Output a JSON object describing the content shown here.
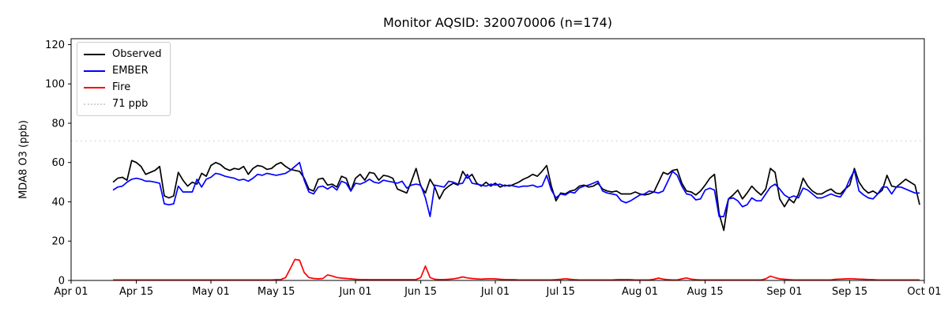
{
  "chart_data": {
    "type": "line",
    "title": "Monitor AQSID: 320070006 (n=174)",
    "xlabel": "",
    "ylabel": "MDA8 O3 (ppb)",
    "n_points": 174,
    "frequency": "daily",
    "start_date": "Apr 10",
    "end_date": "Sep 30",
    "x_axis": {
      "range_labels": [
        "Apr 01",
        "Oct 01"
      ],
      "days_total": 183,
      "data_start_offset_days": 9,
      "ticks": [
        {
          "label": "Apr 01",
          "day": 0
        },
        {
          "label": "Apr 15",
          "day": 14
        },
        {
          "label": "May 01",
          "day": 30
        },
        {
          "label": "May 15",
          "day": 44
        },
        {
          "label": "Jun 01",
          "day": 61
        },
        {
          "label": "Jun 15",
          "day": 75
        },
        {
          "label": "Jul 01",
          "day": 91
        },
        {
          "label": "Jul 15",
          "day": 105
        },
        {
          "label": "Aug 01",
          "day": 122
        },
        {
          "label": "Aug 15",
          "day": 136
        },
        {
          "label": "Sep 01",
          "day": 153
        },
        {
          "label": "Sep 15",
          "day": 167
        },
        {
          "label": "Oct 01",
          "day": 183
        }
      ]
    },
    "y_axis": {
      "ticks": [
        0,
        20,
        40,
        60,
        80,
        100,
        120
      ],
      "range": [
        0,
        123
      ],
      "grid": false
    },
    "threshold": {
      "label": "71 ppb",
      "value": 71,
      "color": "#d3d3d3",
      "style": "dotted"
    },
    "legend": {
      "position": "upper left",
      "entries": [
        {
          "label": "Observed",
          "color": "#000000",
          "style": "solid"
        },
        {
          "label": "EMBER",
          "color": "#0000ff",
          "style": "solid"
        },
        {
          "label": "Fire",
          "color": "#ff0000",
          "style": "solid"
        },
        {
          "label": "71 ppb",
          "color": "#d3d3d3",
          "style": "dotted"
        }
      ]
    },
    "series": [
      {
        "name": "Observed",
        "color": "#000000",
        "values": [
          50,
          52,
          52.5,
          51,
          61,
          60,
          58,
          54,
          55,
          56,
          58,
          43,
          42,
          43,
          55,
          51,
          48,
          50,
          49,
          54.5,
          53,
          58.5,
          60,
          59,
          57,
          56,
          57,
          56.5,
          58,
          54,
          57,
          58.5,
          58,
          56.5,
          57,
          59,
          60,
          58,
          56.5,
          56,
          55.5,
          52,
          46.5,
          45.5,
          51.5,
          52,
          48.5,
          49,
          47.5,
          53,
          52,
          45.5,
          52,
          54,
          51,
          55,
          54.5,
          51,
          53.5,
          53,
          52,
          46.5,
          45.5,
          44.5,
          50.5,
          57,
          48,
          44.5,
          51.5,
          47.5,
          41.5,
          46,
          48,
          49.5,
          48.5,
          55.5,
          52,
          54,
          49.5,
          48,
          50,
          48,
          49.5,
          47.5,
          48.5,
          48,
          49,
          50,
          51.5,
          52.5,
          54,
          53,
          55.5,
          58.5,
          48,
          40.5,
          44.5,
          44,
          45.5,
          46,
          48,
          48.5,
          47.5,
          48,
          49.5,
          46.5,
          45.5,
          45,
          45.5,
          44,
          44,
          44,
          45,
          44,
          43.5,
          44,
          45,
          50,
          55,
          54,
          56,
          56.5,
          49.5,
          45.5,
          45,
          43.5,
          45.5,
          48.5,
          52,
          54,
          34,
          25.5,
          41.5,
          43.5,
          46,
          41.5,
          44.5,
          48,
          45.5,
          43.5,
          46.5,
          57,
          55,
          41.5,
          37.5,
          41.5,
          39.5,
          44,
          52,
          48,
          45.5,
          44,
          44,
          45.5,
          46.5,
          44.5,
          44,
          46.5,
          48.5,
          57,
          50,
          46.5,
          44.5,
          45.5,
          44,
          46,
          53.5,
          48,
          47.5,
          49.5,
          51.5,
          50,
          48.5,
          38.5
        ]
      },
      {
        "name": "EMBER",
        "color": "#0000ff",
        "values": [
          46,
          47.5,
          48,
          50,
          51.5,
          52,
          51.5,
          50.5,
          50.5,
          50,
          49.5,
          39,
          38.5,
          39,
          48,
          45,
          45,
          45,
          51.5,
          47.5,
          51.5,
          52.5,
          54.5,
          54,
          53,
          52.5,
          52,
          51,
          51.5,
          50.5,
          52,
          54,
          53.5,
          54.5,
          54,
          53.5,
          54,
          54.5,
          56,
          58,
          60,
          51,
          45,
          44,
          47.5,
          48,
          46.5,
          48,
          46,
          50.5,
          49.5,
          45.5,
          49.5,
          49,
          50,
          51.5,
          50,
          49.5,
          51,
          50.5,
          50,
          49.5,
          50.5,
          47,
          48.5,
          49,
          48.5,
          42,
          32.5,
          48.5,
          48,
          47.5,
          50.5,
          50,
          49,
          49.5,
          54,
          49.5,
          49,
          48.5,
          48,
          49,
          48.5,
          49,
          48,
          48.5,
          48,
          47.5,
          48,
          48,
          48.5,
          47.5,
          48,
          53.5,
          46,
          42,
          44,
          43.5,
          45,
          44.5,
          47,
          48,
          48.5,
          49.5,
          50.5,
          45.5,
          44.5,
          44,
          43.5,
          40.5,
          39.5,
          40.5,
          42,
          43.5,
          44,
          45.5,
          45,
          44.5,
          45.5,
          50.5,
          55.5,
          53.5,
          48,
          44,
          43.5,
          41,
          41.5,
          46,
          47,
          46,
          32.5,
          32.5,
          41.5,
          42,
          40.5,
          37.5,
          38.5,
          42,
          40.5,
          40.5,
          44,
          47.5,
          49,
          46.5,
          43.5,
          42,
          43,
          42,
          47,
          46,
          44,
          42,
          42,
          43,
          44,
          43,
          42.5,
          46,
          51.5,
          56,
          45.5,
          43.5,
          42,
          41.5,
          44,
          47.5,
          47.5,
          44,
          47.5,
          47.5,
          46.5,
          45.5,
          44.5,
          44.5
        ]
      },
      {
        "name": "Fire",
        "color": "#ff0000",
        "values": [
          0.3,
          0.3,
          0.3,
          0.3,
          0.3,
          0.3,
          0.3,
          0.3,
          0.3,
          0.3,
          0.3,
          0.3,
          0.3,
          0.3,
          0.3,
          0.3,
          0.3,
          0.3,
          0.3,
          0.3,
          0.3,
          0.3,
          0.3,
          0.3,
          0.3,
          0.3,
          0.3,
          0.3,
          0.3,
          0.3,
          0.3,
          0.3,
          0.3,
          0.3,
          0.3,
          0.4,
          0.5,
          1.5,
          6,
          10.7,
          10.3,
          4,
          1.5,
          1,
          0.8,
          1,
          2.8,
          2.3,
          1.5,
          1.2,
          1,
          0.8,
          0.6,
          0.5,
          0.5,
          0.4,
          0.4,
          0.4,
          0.4,
          0.4,
          0.4,
          0.4,
          0.4,
          0.4,
          0.4,
          0.5,
          1.5,
          7.3,
          1.5,
          0.6,
          0.5,
          0.5,
          0.6,
          0.8,
          1.2,
          1.8,
          1.3,
          1,
          0.8,
          0.7,
          0.8,
          0.9,
          0.8,
          0.6,
          0.5,
          0.4,
          0.4,
          0.3,
          0.3,
          0.3,
          0.3,
          0.3,
          0.3,
          0.3,
          0.3,
          0.4,
          0.6,
          0.9,
          0.6,
          0.4,
          0.3,
          0.3,
          0.3,
          0.3,
          0.3,
          0.3,
          0.3,
          0.3,
          0.4,
          0.5,
          0.5,
          0.4,
          0.3,
          0.3,
          0.3,
          0.3,
          0.6,
          1.2,
          0.7,
          0.4,
          0.3,
          0.3,
          0.8,
          1.3,
          0.7,
          0.4,
          0.3,
          0.3,
          0.3,
          0.3,
          0.3,
          0.3,
          0.3,
          0.3,
          0.3,
          0.3,
          0.3,
          0.3,
          0.3,
          0.3,
          0.8,
          2.2,
          1.4,
          0.8,
          0.6,
          0.4,
          0.3,
          0.3,
          0.3,
          0.3,
          0.3,
          0.3,
          0.3,
          0.3,
          0.3,
          0.6,
          0.7,
          0.8,
          0.9,
          0.8,
          0.7,
          0.6,
          0.5,
          0.4,
          0.3,
          0.3,
          0.3,
          0.3,
          0.3,
          0.3,
          0.3,
          0.3,
          0.3,
          0.3
        ]
      }
    ]
  }
}
